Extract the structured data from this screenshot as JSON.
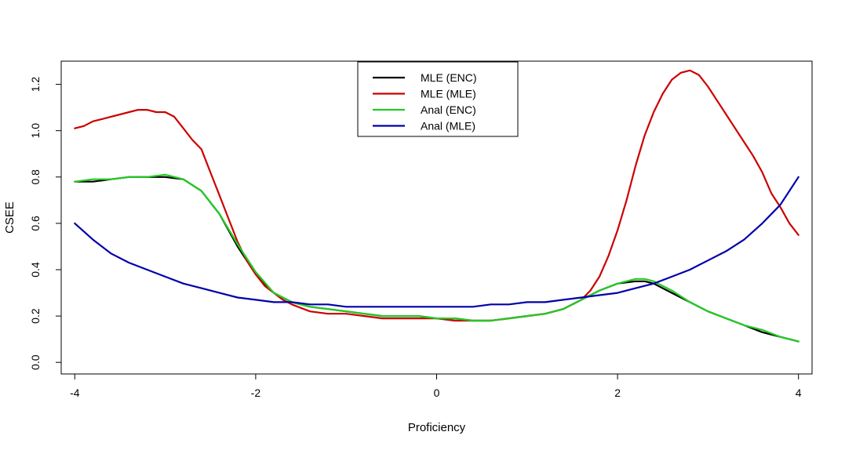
{
  "chart_data": {
    "type": "line",
    "title": "",
    "xlabel": "Proficiency",
    "ylabel": "CSEE",
    "xlim": [
      -4.15,
      4.15
    ],
    "ylim": [
      -0.05,
      1.3
    ],
    "x_ticks": [
      -4,
      -2,
      0,
      2,
      4
    ],
    "x_tick_labels": [
      "-4",
      "-2",
      "0",
      "2",
      "4"
    ],
    "y_ticks": [
      0.0,
      0.2,
      0.4,
      0.6,
      0.8,
      1.0,
      1.2
    ],
    "y_tick_labels": [
      "0.0",
      "0.2",
      "0.4",
      "0.6",
      "0.8",
      "1.0",
      "1.2"
    ],
    "grid": false,
    "legend_position": "top-center",
    "series": [
      {
        "name": "MLE (ENC)",
        "color": "#000000",
        "x": [
          -4,
          -3.8,
          -3.6,
          -3.4,
          -3.2,
          -3.0,
          -2.8,
          -2.6,
          -2.4,
          -2.2,
          -2.0,
          -1.8,
          -1.6,
          -1.4,
          -1.2,
          -1.0,
          -0.8,
          -0.6,
          -0.4,
          -0.2,
          0.0,
          0.2,
          0.4,
          0.6,
          0.8,
          1.0,
          1.2,
          1.4,
          1.6,
          1.8,
          2.0,
          2.2,
          2.3,
          2.4,
          2.6,
          2.8,
          3.0,
          3.2,
          3.4,
          3.6,
          3.8,
          4.0
        ],
        "y": [
          0.78,
          0.78,
          0.79,
          0.8,
          0.8,
          0.8,
          0.79,
          0.74,
          0.64,
          0.5,
          0.38,
          0.3,
          0.26,
          0.24,
          0.23,
          0.22,
          0.21,
          0.2,
          0.2,
          0.2,
          0.19,
          0.19,
          0.18,
          0.18,
          0.19,
          0.2,
          0.21,
          0.23,
          0.27,
          0.31,
          0.34,
          0.35,
          0.35,
          0.34,
          0.3,
          0.26,
          0.22,
          0.19,
          0.16,
          0.13,
          0.11,
          0.09
        ]
      },
      {
        "name": "MLE (MLE)",
        "color": "#cc0000",
        "x": [
          -4,
          -3.9,
          -3.8,
          -3.7,
          -3.6,
          -3.5,
          -3.4,
          -3.3,
          -3.2,
          -3.1,
          -3.0,
          -2.9,
          -2.8,
          -2.7,
          -2.6,
          -2.5,
          -2.4,
          -2.3,
          -2.2,
          -2.1,
          -2.0,
          -1.9,
          -1.8,
          -1.7,
          -1.6,
          -1.4,
          -1.2,
          -1.0,
          -0.8,
          -0.6,
          -0.4,
          -0.2,
          0.0,
          0.2,
          0.4,
          0.6,
          0.8,
          1.0,
          1.2,
          1.4,
          1.6,
          1.7,
          1.8,
          1.9,
          2.0,
          2.1,
          2.2,
          2.3,
          2.4,
          2.5,
          2.6,
          2.7,
          2.8,
          2.9,
          3.0,
          3.1,
          3.2,
          3.3,
          3.4,
          3.5,
          3.6,
          3.7,
          3.8,
          3.9,
          4.0
        ],
        "y": [
          1.01,
          1.02,
          1.04,
          1.05,
          1.06,
          1.07,
          1.08,
          1.09,
          1.09,
          1.08,
          1.08,
          1.06,
          1.01,
          0.96,
          0.92,
          0.82,
          0.72,
          0.62,
          0.52,
          0.44,
          0.38,
          0.33,
          0.3,
          0.27,
          0.25,
          0.22,
          0.21,
          0.21,
          0.2,
          0.19,
          0.19,
          0.19,
          0.19,
          0.18,
          0.18,
          0.18,
          0.19,
          0.2,
          0.21,
          0.23,
          0.27,
          0.31,
          0.37,
          0.46,
          0.57,
          0.7,
          0.85,
          0.98,
          1.08,
          1.16,
          1.22,
          1.25,
          1.26,
          1.24,
          1.19,
          1.13,
          1.07,
          1.01,
          0.95,
          0.89,
          0.82,
          0.73,
          0.67,
          0.6,
          0.55
        ]
      },
      {
        "name": "Anal (ENC)",
        "color": "#22cc22",
        "x": [
          -4,
          -3.8,
          -3.6,
          -3.4,
          -3.2,
          -3.0,
          -2.8,
          -2.6,
          -2.4,
          -2.2,
          -2.0,
          -1.8,
          -1.6,
          -1.4,
          -1.2,
          -1.0,
          -0.8,
          -0.6,
          -0.4,
          -0.2,
          0.0,
          0.2,
          0.4,
          0.6,
          0.8,
          1.0,
          1.2,
          1.4,
          1.6,
          1.8,
          2.0,
          2.2,
          2.3,
          2.4,
          2.6,
          2.8,
          3.0,
          3.2,
          3.4,
          3.6,
          3.8,
          4.0
        ],
        "y": [
          0.78,
          0.79,
          0.79,
          0.8,
          0.8,
          0.81,
          0.79,
          0.74,
          0.64,
          0.51,
          0.39,
          0.3,
          0.26,
          0.24,
          0.23,
          0.22,
          0.21,
          0.2,
          0.2,
          0.2,
          0.19,
          0.19,
          0.18,
          0.18,
          0.19,
          0.2,
          0.21,
          0.23,
          0.27,
          0.31,
          0.34,
          0.36,
          0.36,
          0.35,
          0.31,
          0.26,
          0.22,
          0.19,
          0.16,
          0.14,
          0.11,
          0.09
        ]
      },
      {
        "name": "Anal (MLE)",
        "color": "#0000aa",
        "x": [
          -4,
          -3.8,
          -3.6,
          -3.4,
          -3.2,
          -3.0,
          -2.8,
          -2.6,
          -2.4,
          -2.2,
          -2.0,
          -1.8,
          -1.6,
          -1.4,
          -1.2,
          -1.0,
          -0.8,
          -0.6,
          -0.4,
          -0.2,
          0.0,
          0.2,
          0.4,
          0.6,
          0.8,
          1.0,
          1.2,
          1.4,
          1.6,
          1.8,
          2.0,
          2.2,
          2.4,
          2.6,
          2.8,
          3.0,
          3.2,
          3.4,
          3.6,
          3.8,
          4.0
        ],
        "y": [
          0.6,
          0.53,
          0.47,
          0.43,
          0.4,
          0.37,
          0.34,
          0.32,
          0.3,
          0.28,
          0.27,
          0.26,
          0.26,
          0.25,
          0.25,
          0.24,
          0.24,
          0.24,
          0.24,
          0.24,
          0.24,
          0.24,
          0.24,
          0.25,
          0.25,
          0.26,
          0.26,
          0.27,
          0.28,
          0.29,
          0.3,
          0.32,
          0.34,
          0.37,
          0.4,
          0.44,
          0.48,
          0.53,
          0.6,
          0.68,
          0.8
        ]
      }
    ]
  }
}
